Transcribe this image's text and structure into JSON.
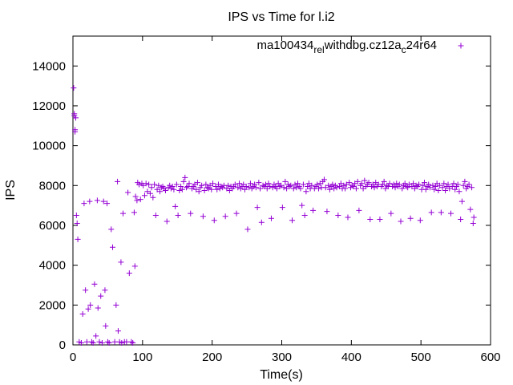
{
  "chart_data": {
    "type": "scatter",
    "title": "IPS vs Time for l.i2",
    "xlabel": "Time(s)",
    "ylabel": "IPS",
    "xlim": [
      0,
      600
    ],
    "ylim": [
      0,
      15500
    ],
    "x_ticks": [
      0,
      100,
      200,
      300,
      400,
      500,
      600
    ],
    "y_ticks": [
      0,
      2000,
      4000,
      6000,
      8000,
      10000,
      12000,
      14000
    ],
    "grid": false,
    "legend_position": "top-right",
    "marker": "+",
    "color": "#9400D3",
    "series": [
      {
        "name": "ma100434_rel_withdbg.cz12a_c24r64",
        "legend_parts": [
          {
            "text": "ma100434",
            "shift": "base"
          },
          {
            "text": "rel",
            "shift": "sub"
          },
          {
            "text": "withdbg.cz12a",
            "shift": "base"
          },
          {
            "text": "c",
            "shift": "sub"
          },
          {
            "text": "24r64",
            "shift": "base"
          }
        ],
        "points": [
          [
            1,
            12900
          ],
          [
            2,
            11600
          ],
          [
            2,
            11500
          ],
          [
            3,
            10800
          ],
          [
            3,
            10700
          ],
          [
            4,
            11400
          ],
          [
            5,
            6500
          ],
          [
            6,
            6100
          ],
          [
            7,
            5300
          ],
          [
            9,
            150
          ],
          [
            12,
            100
          ],
          [
            14,
            1550
          ],
          [
            16,
            7100
          ],
          [
            18,
            2750
          ],
          [
            20,
            150
          ],
          [
            22,
            1800
          ],
          [
            24,
            7200
          ],
          [
            25,
            2000
          ],
          [
            27,
            150
          ],
          [
            29,
            100
          ],
          [
            31,
            3050
          ],
          [
            33,
            450
          ],
          [
            35,
            7250
          ],
          [
            36,
            1850
          ],
          [
            38,
            150
          ],
          [
            40,
            2450
          ],
          [
            42,
            100
          ],
          [
            44,
            7200
          ],
          [
            46,
            2750
          ],
          [
            47,
            950
          ],
          [
            49,
            7100
          ],
          [
            50,
            150
          ],
          [
            52,
            100
          ],
          [
            55,
            5800
          ],
          [
            57,
            4900
          ],
          [
            60,
            150
          ],
          [
            62,
            2000
          ],
          [
            64,
            8200
          ],
          [
            65,
            700
          ],
          [
            67,
            150
          ],
          [
            69,
            4150
          ],
          [
            70,
            100
          ],
          [
            72,
            6600
          ],
          [
            74,
            150
          ],
          [
            77,
            150
          ],
          [
            79,
            7650
          ],
          [
            81,
            3600
          ],
          [
            84,
            150
          ],
          [
            86,
            100
          ],
          [
            88,
            6650
          ],
          [
            89,
            3950
          ],
          [
            90,
            7450
          ],
          [
            92,
            7250
          ],
          [
            93,
            8150
          ],
          [
            95,
            8050
          ],
          [
            97,
            7300
          ],
          [
            99,
            8100
          ],
          [
            101,
            8000
          ],
          [
            103,
            7500
          ],
          [
            105,
            8100
          ],
          [
            107,
            7700
          ],
          [
            109,
            8050
          ],
          [
            111,
            7600
          ],
          [
            113,
            7900
          ],
          [
            115,
            7400
          ],
          [
            117,
            8050
          ],
          [
            119,
            6500
          ],
          [
            121,
            7800
          ],
          [
            123,
            8000
          ],
          [
            125,
            7700
          ],
          [
            127,
            7900
          ],
          [
            129,
            7950
          ],
          [
            131,
            7850
          ],
          [
            133,
            7750
          ],
          [
            135,
            6200
          ],
          [
            137,
            7900
          ],
          [
            139,
            8000
          ],
          [
            141,
            7850
          ],
          [
            143,
            7950
          ],
          [
            145,
            7800
          ],
          [
            147,
            6950
          ],
          [
            149,
            8050
          ],
          [
            151,
            6500
          ],
          [
            153,
            7750
          ],
          [
            155,
            7950
          ],
          [
            157,
            7800
          ],
          [
            159,
            8200
          ],
          [
            161,
            8400
          ],
          [
            163,
            7900
          ],
          [
            165,
            7950
          ],
          [
            167,
            8100
          ],
          [
            169,
            6600
          ],
          [
            171,
            7850
          ],
          [
            173,
            7950
          ],
          [
            175,
            8050
          ],
          [
            177,
            7800
          ],
          [
            179,
            8150
          ],
          [
            181,
            7700
          ],
          [
            183,
            7900
          ],
          [
            185,
            8000
          ],
          [
            187,
            6450
          ],
          [
            189,
            7750
          ],
          [
            191,
            8050
          ],
          [
            193,
            7900
          ],
          [
            195,
            7850
          ],
          [
            197,
            8000
          ],
          [
            199,
            7800
          ],
          [
            201,
            8100
          ],
          [
            203,
            6250
          ],
          [
            205,
            7950
          ],
          [
            207,
            7800
          ],
          [
            209,
            8050
          ],
          [
            211,
            7850
          ],
          [
            213,
            7950
          ],
          [
            215,
            7900
          ],
          [
            217,
            8000
          ],
          [
            219,
            6450
          ],
          [
            221,
            7850
          ],
          [
            223,
            8000
          ],
          [
            225,
            7750
          ],
          [
            227,
            7950
          ],
          [
            229,
            7850
          ],
          [
            231,
            7950
          ],
          [
            233,
            8050
          ],
          [
            235,
            6600
          ],
          [
            237,
            7900
          ],
          [
            239,
            8100
          ],
          [
            241,
            7850
          ],
          [
            243,
            7950
          ],
          [
            245,
            8050
          ],
          [
            247,
            7800
          ],
          [
            249,
            7950
          ],
          [
            251,
            5800
          ],
          [
            253,
            7900
          ],
          [
            255,
            8100
          ],
          [
            257,
            7850
          ],
          [
            259,
            7950
          ],
          [
            261,
            8050
          ],
          [
            263,
            7900
          ],
          [
            265,
            6900
          ],
          [
            267,
            8150
          ],
          [
            269,
            7850
          ],
          [
            271,
            6150
          ],
          [
            273,
            8000
          ],
          [
            275,
            7950
          ],
          [
            277,
            8050
          ],
          [
            279,
            7850
          ],
          [
            281,
            8100
          ],
          [
            283,
            7950
          ],
          [
            285,
            6350
          ],
          [
            287,
            7900
          ],
          [
            289,
            8050
          ],
          [
            291,
            7950
          ],
          [
            293,
            7850
          ],
          [
            295,
            8100
          ],
          [
            297,
            7950
          ],
          [
            299,
            8000
          ],
          [
            301,
            6900
          ],
          [
            303,
            7900
          ],
          [
            305,
            8200
          ],
          [
            307,
            7850
          ],
          [
            309,
            8050
          ],
          [
            311,
            7950
          ],
          [
            313,
            8000
          ],
          [
            315,
            6250
          ],
          [
            317,
            7850
          ],
          [
            319,
            8050
          ],
          [
            321,
            7900
          ],
          [
            323,
            8100
          ],
          [
            325,
            7950
          ],
          [
            327,
            7850
          ],
          [
            329,
            7000
          ],
          [
            331,
            8050
          ],
          [
            333,
            6500
          ],
          [
            335,
            7700
          ],
          [
            337,
            7950
          ],
          [
            339,
            8100
          ],
          [
            341,
            7850
          ],
          [
            343,
            8000
          ],
          [
            345,
            6750
          ],
          [
            347,
            7850
          ],
          [
            349,
            7950
          ],
          [
            351,
            8050
          ],
          [
            353,
            7850
          ],
          [
            355,
            8100
          ],
          [
            357,
            7900
          ],
          [
            359,
            8200
          ],
          [
            361,
            8300
          ],
          [
            363,
            7900
          ],
          [
            365,
            6700
          ],
          [
            367,
            8000
          ],
          [
            369,
            7800
          ],
          [
            371,
            7950
          ],
          [
            373,
            8050
          ],
          [
            375,
            7850
          ],
          [
            377,
            8000
          ],
          [
            379,
            7900
          ],
          [
            381,
            6500
          ],
          [
            383,
            7950
          ],
          [
            385,
            8100
          ],
          [
            387,
            7850
          ],
          [
            389,
            8000
          ],
          [
            391,
            7850
          ],
          [
            393,
            8050
          ],
          [
            395,
            6400
          ],
          [
            397,
            8150
          ],
          [
            399,
            7900
          ],
          [
            401,
            8000
          ],
          [
            403,
            7950
          ],
          [
            405,
            8100
          ],
          [
            407,
            7850
          ],
          [
            409,
            8200
          ],
          [
            411,
            6750
          ],
          [
            413,
            8000
          ],
          [
            415,
            8100
          ],
          [
            417,
            7850
          ],
          [
            419,
            8250
          ],
          [
            421,
            7950
          ],
          [
            423,
            8050
          ],
          [
            425,
            8150
          ],
          [
            427,
            6300
          ],
          [
            429,
            7950
          ],
          [
            431,
            8050
          ],
          [
            433,
            7900
          ],
          [
            435,
            8150
          ],
          [
            437,
            7950
          ],
          [
            439,
            8050
          ],
          [
            441,
            6300
          ],
          [
            443,
            7950
          ],
          [
            445,
            8050
          ],
          [
            447,
            8200
          ],
          [
            449,
            7850
          ],
          [
            451,
            8000
          ],
          [
            453,
            7950
          ],
          [
            455,
            8100
          ],
          [
            457,
            6600
          ],
          [
            459,
            7950
          ],
          [
            461,
            8050
          ],
          [
            463,
            7900
          ],
          [
            465,
            8100
          ],
          [
            467,
            7950
          ],
          [
            469,
            8050
          ],
          [
            471,
            6200
          ],
          [
            473,
            7850
          ],
          [
            475,
            8000
          ],
          [
            477,
            8100
          ],
          [
            479,
            7950
          ],
          [
            481,
            7900
          ],
          [
            483,
            8050
          ],
          [
            485,
            6350
          ],
          [
            487,
            7950
          ],
          [
            489,
            8100
          ],
          [
            491,
            7850
          ],
          [
            493,
            8000
          ],
          [
            495,
            7950
          ],
          [
            497,
            8050
          ],
          [
            499,
            6250
          ],
          [
            501,
            7800
          ],
          [
            503,
            8000
          ],
          [
            505,
            8150
          ],
          [
            507,
            7800
          ],
          [
            509,
            7950
          ],
          [
            511,
            8050
          ],
          [
            513,
            7900
          ],
          [
            515,
            6650
          ],
          [
            517,
            8000
          ],
          [
            519,
            7800
          ],
          [
            521,
            7950
          ],
          [
            523,
            8100
          ],
          [
            525,
            7750
          ],
          [
            527,
            8000
          ],
          [
            529,
            6650
          ],
          [
            531,
            7900
          ],
          [
            533,
            8100
          ],
          [
            535,
            7750
          ],
          [
            537,
            7950
          ],
          [
            539,
            8050
          ],
          [
            541,
            7850
          ],
          [
            543,
            6600
          ],
          [
            545,
            7950
          ],
          [
            547,
            8100
          ],
          [
            549,
            7800
          ],
          [
            551,
            7950
          ],
          [
            553,
            8050
          ],
          [
            555,
            7700
          ],
          [
            557,
            6300
          ],
          [
            559,
            7200
          ],
          [
            561,
            8000
          ],
          [
            563,
            8200
          ],
          [
            565,
            7850
          ],
          [
            567,
            7950
          ],
          [
            569,
            8050
          ],
          [
            571,
            6800
          ],
          [
            573,
            7900
          ],
          [
            575,
            6100
          ],
          [
            576,
            6400
          ]
        ]
      }
    ]
  }
}
